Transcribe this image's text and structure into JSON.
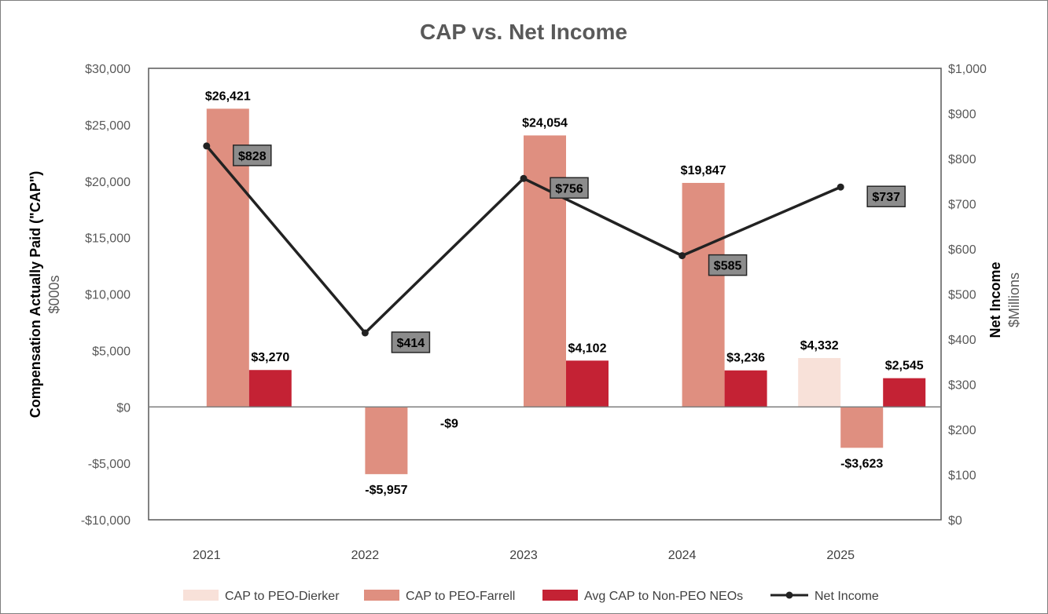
{
  "chart_data": {
    "type": "bar",
    "title": "CAP vs. Net Income",
    "categories": [
      "2021",
      "2022",
      "2023",
      "2024",
      "2025"
    ],
    "ylabel": "Compensation Actually Paid (\"CAP\")",
    "ylabel_units": "$000s",
    "y2label": "Net Income",
    "y2label_units": "$Millions",
    "ylim": [
      -10000,
      30000
    ],
    "y_ticks": [
      -10000,
      -5000,
      0,
      5000,
      10000,
      15000,
      20000,
      25000,
      30000
    ],
    "y_tick_labels": [
      "-$10,000",
      "-$5,000",
      "$0",
      "$5,000",
      "$10,000",
      "$15,000",
      "$20,000",
      "$25,000",
      "$30,000"
    ],
    "y2lim": [
      0,
      1000
    ],
    "y2_ticks": [
      0,
      100,
      200,
      300,
      400,
      500,
      600,
      700,
      800,
      900,
      1000
    ],
    "y2_tick_labels": [
      "$0",
      "$100",
      "$200",
      "$300",
      "$400",
      "$500",
      "$600",
      "$700",
      "$800",
      "$900",
      "$1,000"
    ],
    "legend_position": "bottom",
    "series": [
      {
        "name": "CAP to PEO-Dierker",
        "color": "#f8e1d9",
        "values": [
          null,
          null,
          null,
          null,
          4332
        ],
        "labels": [
          null,
          null,
          null,
          null,
          "$4,332"
        ]
      },
      {
        "name": "CAP to PEO-Farrell",
        "color": "#df8f80",
        "values": [
          26421,
          -5957,
          24054,
          19847,
          -3623
        ],
        "labels": [
          "$26,421",
          "-$5,957",
          "$24,054",
          "$19,847",
          "-$3,623"
        ]
      },
      {
        "name": "Avg CAP to Non-PEO NEOs",
        "color": "#c42234",
        "values": [
          3270,
          -9,
          4102,
          3236,
          2545
        ],
        "labels": [
          "$3,270",
          "-$9",
          "$4,102",
          "$3,236",
          "$2,545"
        ]
      },
      {
        "name": "Net Income",
        "type": "line",
        "axis": "right",
        "color": "#222222",
        "values": [
          828,
          414,
          756,
          585,
          737
        ],
        "labels": [
          "$828",
          "$414",
          "$756",
          "$585",
          "$737"
        ]
      }
    ]
  }
}
